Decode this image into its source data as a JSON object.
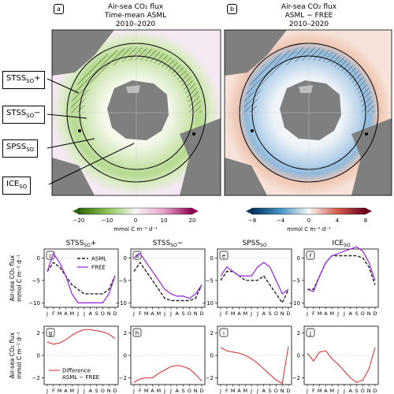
{
  "maps": {
    "a": {
      "letter": "a",
      "title_line1": "Air-sea CO₂ flux",
      "title_line2": "Time-mean ASML",
      "title_line3": "2010–2020",
      "cbar_ticks": [
        "−20",
        "−10",
        "0",
        "10",
        "20"
      ],
      "cbar_label": "mmol C m⁻² d⁻¹"
    },
    "b": {
      "letter": "b",
      "title_line1": "Air-sea CO₂ flux",
      "title_line2": "ASML − FREE",
      "title_line3": "2010–2020",
      "cbar_ticks": [
        "−8",
        "−4",
        "0",
        "4",
        "8"
      ],
      "cbar_label": "mmol C m⁻² d⁻¹"
    }
  },
  "regions": [
    {
      "label": "STSS",
      "sub": "SO",
      "suffix": "+"
    },
    {
      "label": "STSS",
      "sub": "SO",
      "suffix": "−"
    },
    {
      "label": "SPSS",
      "sub": "SO",
      "suffix": ""
    },
    {
      "label": "ICE",
      "sub": "SO",
      "suffix": ""
    }
  ],
  "colors": {
    "asml": "#222222",
    "free": "#9b30d9",
    "diff": "#d62728",
    "land": "#7f7f7f",
    "ice_shelf": "#bdbdbd"
  },
  "row_labels": {
    "top": "Air-sea CO₂ flux",
    "top2": "mmol C m⁻² d⁻¹",
    "bottom": "Air-sea CO₂ flux",
    "bottom2": "mmol C m⁻² d⁻¹"
  },
  "months": [
    "J",
    "F",
    "M",
    "A",
    "M",
    "J",
    "J",
    "A",
    "S",
    "O",
    "N",
    "D"
  ],
  "chart_data": [
    {
      "type": "line",
      "panel": "c",
      "title": "STSS_SO+",
      "x": [
        "J",
        "F",
        "M",
        "A",
        "M",
        "J",
        "J",
        "A",
        "S",
        "O",
        "N",
        "D"
      ],
      "ylim": [
        -11,
        2
      ],
      "yticks": [
        0,
        -5,
        -10
      ],
      "legend": "top-right",
      "series": [
        {
          "name": "ASML",
          "style": "dashed",
          "values": [
            -3,
            -1,
            -2,
            -4,
            -6,
            -7,
            -8,
            -8,
            -8,
            -8,
            -7,
            -4
          ]
        },
        {
          "name": "FREE",
          "values": [
            -3,
            1,
            -1,
            -4,
            -8,
            -10,
            -10,
            -10,
            -10,
            -10,
            -8,
            -4
          ]
        }
      ]
    },
    {
      "type": "line",
      "panel": "d",
      "title": "STSS_SO−",
      "x": [
        "J",
        "F",
        "M",
        "A",
        "M",
        "J",
        "J",
        "A",
        "S",
        "O",
        "N",
        "D"
      ],
      "ylim": [
        -11,
        2
      ],
      "yticks": [
        0,
        -5,
        -10
      ],
      "series": [
        {
          "name": "ASML",
          "style": "dashed",
          "values": [
            -3,
            -1,
            -3,
            -5,
            -7,
            -9,
            -9.5,
            -9.5,
            -9.5,
            -9.5,
            -9,
            -6
          ]
        },
        {
          "name": "FREE",
          "values": [
            0,
            1,
            -1,
            -3,
            -5,
            -7,
            -8,
            -8.5,
            -8.5,
            -9,
            -8,
            -6
          ]
        }
      ]
    },
    {
      "type": "line",
      "panel": "e",
      "title": "SPSS_SO",
      "x": [
        "J",
        "F",
        "M",
        "A",
        "M",
        "J",
        "J",
        "A",
        "S",
        "O",
        "N",
        "D"
      ],
      "ylim": [
        -11,
        2
      ],
      "yticks": [
        0,
        -5,
        -10
      ],
      "series": [
        {
          "name": "ASML",
          "style": "dashed",
          "values": [
            -5,
            -3,
            -3,
            -4,
            -5,
            -5,
            -5,
            -4,
            -6,
            -8,
            -10,
            -7
          ]
        },
        {
          "name": "FREE",
          "values": [
            -4,
            -2,
            -3,
            -4,
            -4,
            -4,
            -2,
            -1,
            -2,
            -5,
            -8,
            -7
          ]
        }
      ]
    },
    {
      "type": "line",
      "panel": "f",
      "title": "ICE_SO",
      "x": [
        "J",
        "F",
        "M",
        "A",
        "M",
        "J",
        "J",
        "A",
        "S",
        "O",
        "N",
        "D"
      ],
      "ylim": [
        -11,
        2
      ],
      "yticks": [
        0,
        -5,
        -10
      ],
      "series": [
        {
          "name": "ASML",
          "style": "dashed",
          "values": [
            -7,
            -7,
            -4,
            -1,
            0.5,
            0.5,
            0.5,
            0.5,
            0.5,
            0,
            -2,
            -6
          ]
        },
        {
          "name": "FREE",
          "values": [
            -7,
            -7.5,
            -4,
            -1,
            0.5,
            1,
            1.5,
            2,
            2.5,
            1.5,
            -1,
            -5
          ]
        }
      ]
    },
    {
      "type": "line",
      "panel": "g",
      "x": [
        "J",
        "F",
        "M",
        "A",
        "M",
        "J",
        "J",
        "A",
        "S",
        "O",
        "N",
        "D"
      ],
      "ylim": [
        -2.6,
        2.6
      ],
      "yticks": [
        2,
        0,
        -2
      ],
      "legend": "bottom-left",
      "series": [
        {
          "name": "Difference ASML − FREE",
          "values": [
            1.2,
            1.0,
            1.1,
            1.4,
            1.8,
            2.1,
            2.3,
            2.3,
            2.2,
            2.1,
            1.9,
            1.5
          ]
        }
      ]
    },
    {
      "type": "line",
      "panel": "h",
      "x": [
        "J",
        "F",
        "M",
        "A",
        "M",
        "J",
        "J",
        "A",
        "S",
        "O",
        "N",
        "D"
      ],
      "ylim": [
        -2.6,
        2.6
      ],
      "yticks": [
        2,
        0,
        -2
      ],
      "series": [
        {
          "name": "",
          "values": [
            -2.4,
            -2.1,
            -2.0,
            -2.0,
            -1.6,
            -1.3,
            -1.0,
            -0.9,
            -1.0,
            -1.2,
            -1.7,
            -2.3
          ]
        }
      ]
    },
    {
      "type": "line",
      "panel": "i",
      "x": [
        "J",
        "F",
        "M",
        "A",
        "M",
        "J",
        "J",
        "A",
        "S",
        "O",
        "N",
        "D"
      ],
      "ylim": [
        -2.6,
        2.6
      ],
      "yticks": [
        2,
        0,
        -2
      ],
      "series": [
        {
          "name": "",
          "values": [
            0.7,
            0.4,
            0.3,
            0.2,
            0.0,
            -0.3,
            -0.7,
            -1.2,
            -1.7,
            -2.2,
            -2.5,
            0.8
          ]
        }
      ]
    },
    {
      "type": "line",
      "panel": "j",
      "x": [
        "J",
        "F",
        "M",
        "A",
        "M",
        "J",
        "J",
        "A",
        "S",
        "O",
        "N",
        "D"
      ],
      "ylim": [
        -2.6,
        2.6
      ],
      "yticks": [
        2,
        0,
        -2
      ],
      "series": [
        {
          "name": "",
          "values": [
            0.2,
            -0.5,
            0.3,
            0.4,
            -0.3,
            -0.8,
            -1.4,
            -2.0,
            -2.4,
            -2.2,
            -1.2,
            0.7
          ]
        }
      ]
    }
  ]
}
